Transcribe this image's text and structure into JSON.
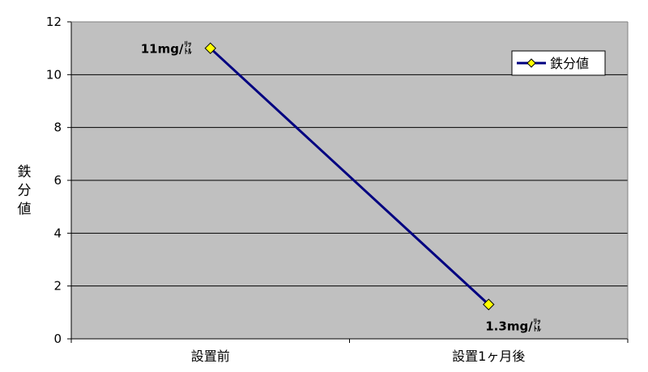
{
  "chart_data": {
    "type": "line",
    "categories": [
      "設置前",
      "設置1ヶ月後"
    ],
    "series": [
      {
        "name": "鉄分値",
        "values": [
          11,
          1.3
        ]
      }
    ],
    "ylabel": "鉄分値",
    "xlabel": "",
    "ylim": [
      0,
      12
    ],
    "yticks": [
      0,
      2,
      4,
      6,
      8,
      10,
      12
    ],
    "grid": true,
    "legend": "top-right",
    "data_labels": [
      {
        "main": "11mg/",
        "unit_top": "ﾘｯ",
        "unit_bottom": "ﾄﾙ"
      },
      {
        "main": "1.3mg/",
        "unit_top": "ﾘｯ",
        "unit_bottom": "ﾄﾙ"
      }
    ],
    "colors": {
      "plot_background": "#c0c0c0",
      "line": "#000080",
      "marker_fill": "#ffff00",
      "marker_stroke": "#000000",
      "grid": "#000000"
    }
  }
}
